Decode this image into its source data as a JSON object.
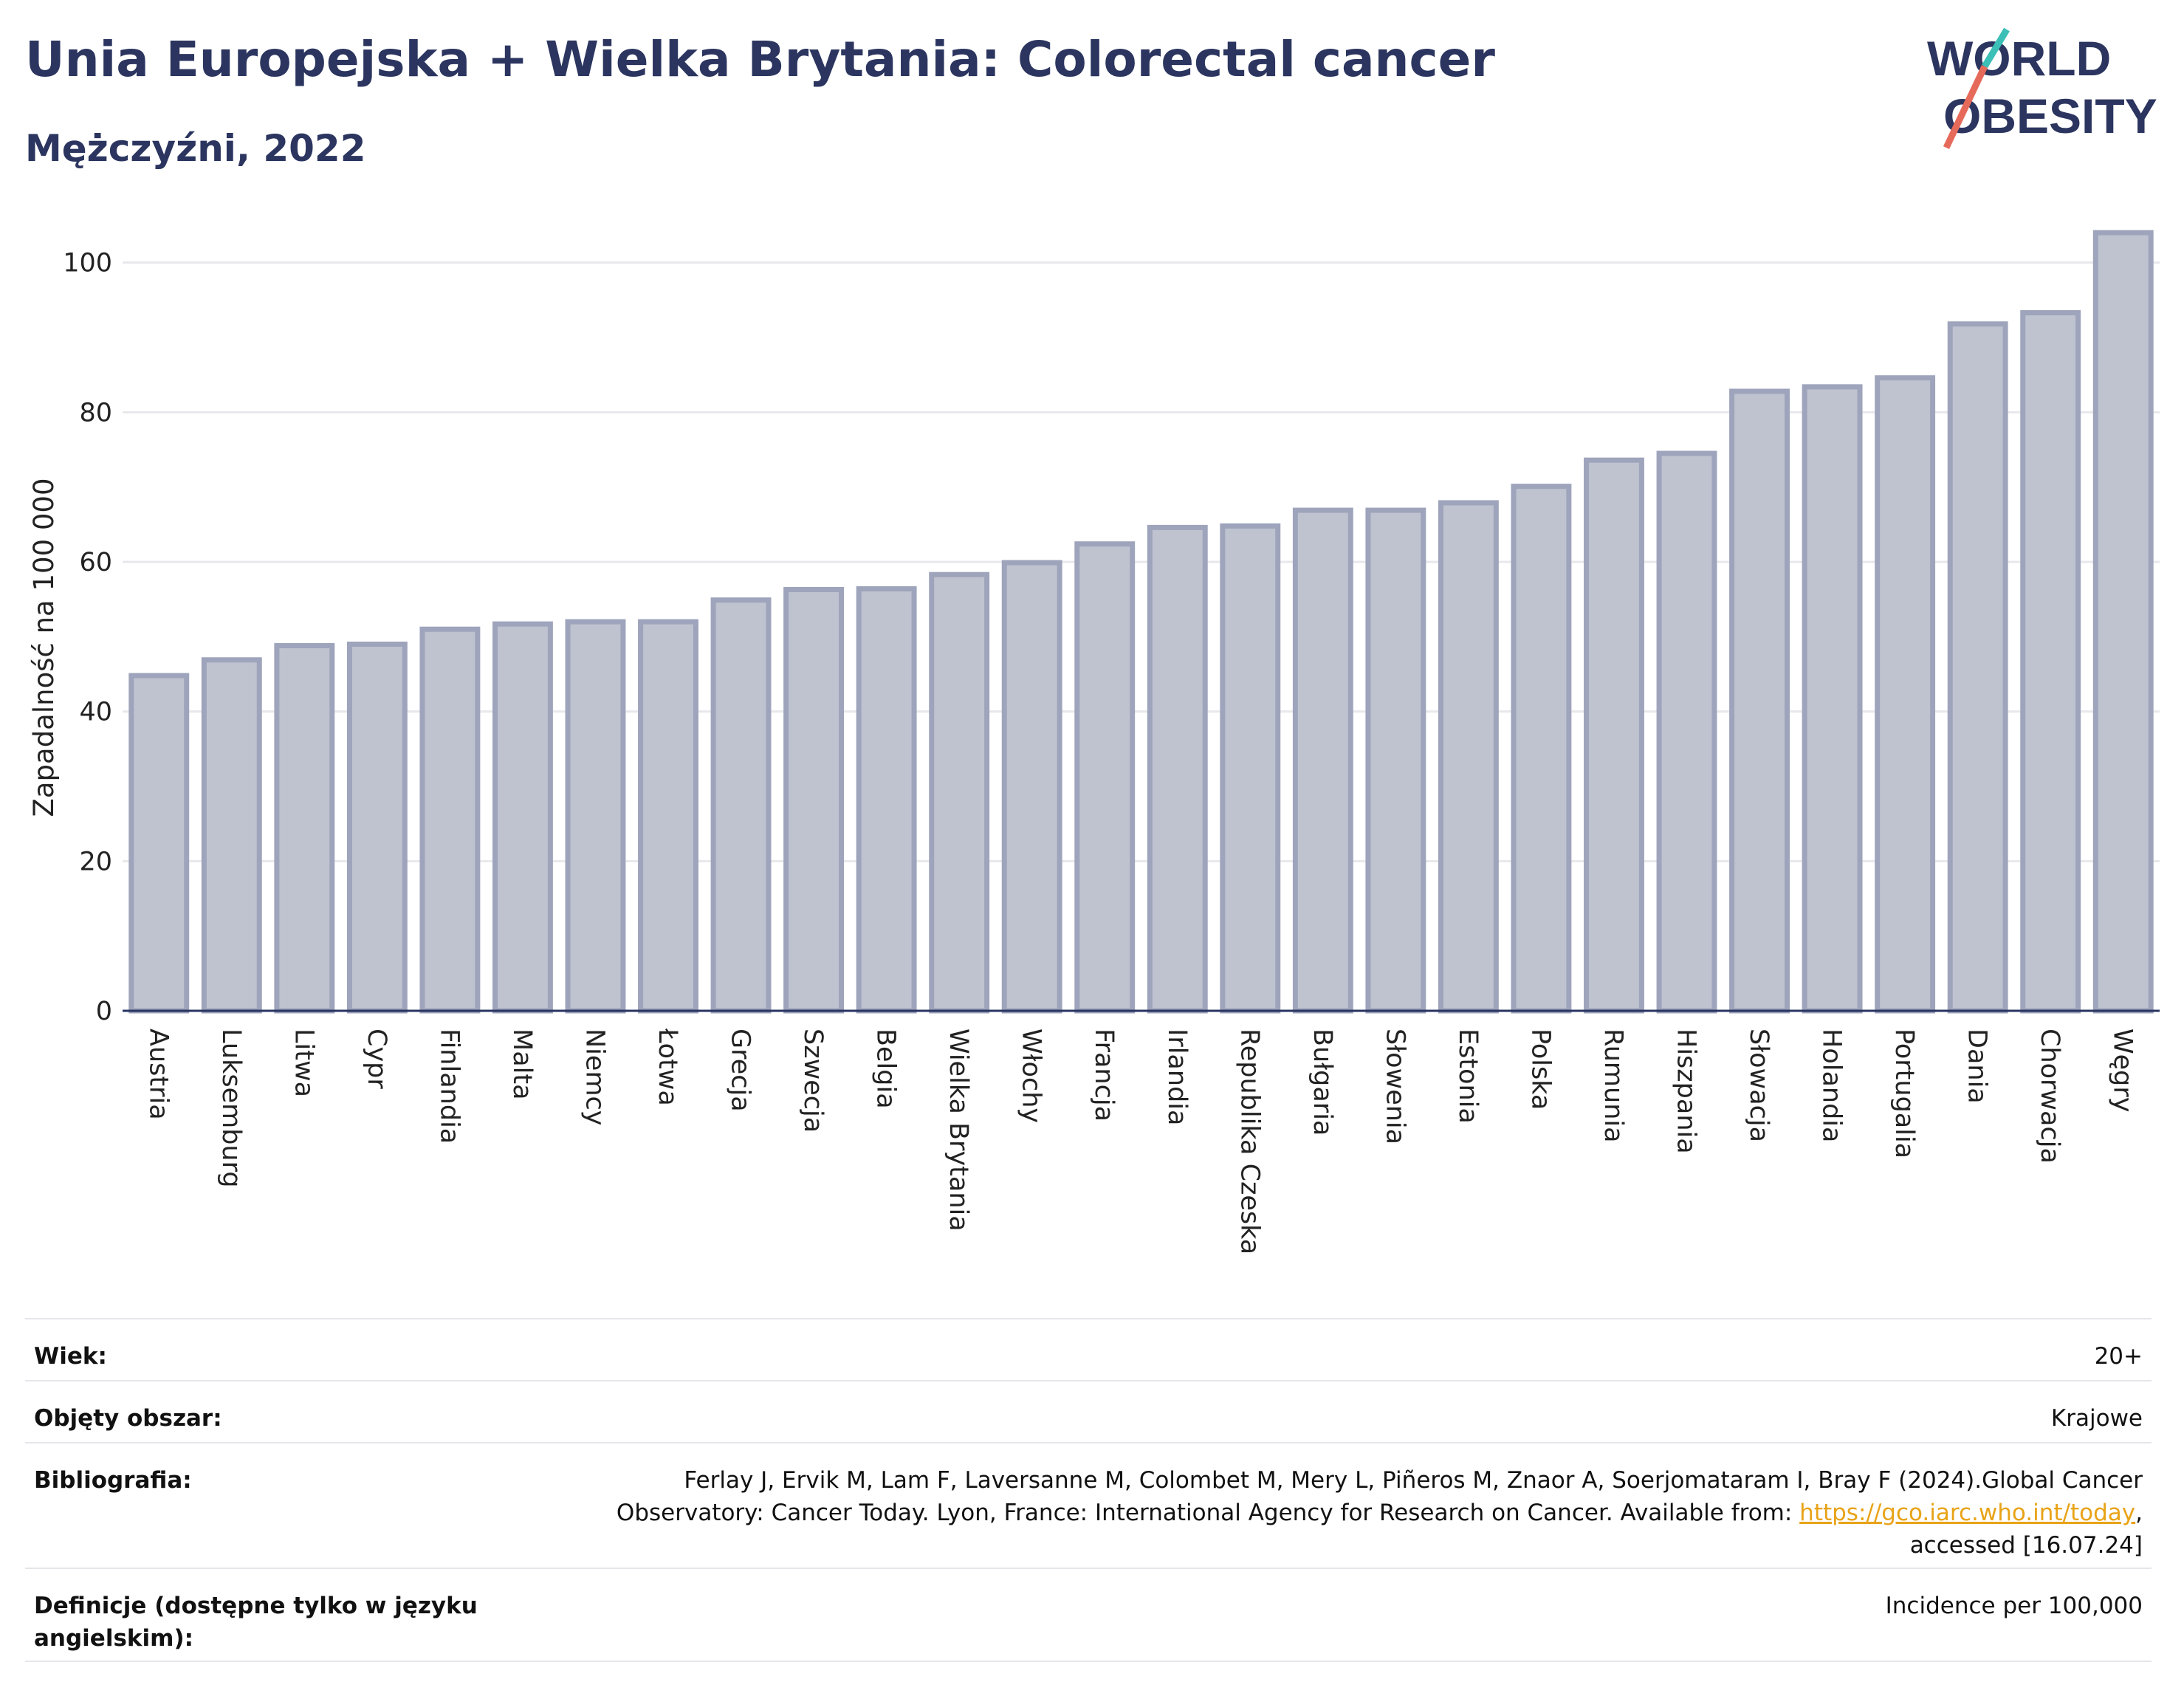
{
  "header": {
    "title": "Unia Europejska + Wielka Brytania: Colorectal cancer",
    "subtitle": "Mężczyźni, 2022"
  },
  "logo": {
    "line1": "WORLD",
    "line2": "OBESITY",
    "accent1": "#3bbfb7",
    "accent2": "#e66a5a",
    "color": "#2b355f"
  },
  "chart_data": {
    "type": "bar",
    "ylabel": "Zapadalność na 100 000",
    "xlabel": "",
    "ylim": [
      0,
      105
    ],
    "yticks": [
      0,
      20,
      40,
      60,
      80,
      100
    ],
    "grid": true,
    "bar_color": "#bfc3d0",
    "bar_edge": "#9ea4bb",
    "categories": [
      "Austria",
      "Luksemburg",
      "Litwa",
      "Cypr",
      "Finlandia",
      "Malta",
      "Niemcy",
      "Łotwa",
      "Grecja",
      "Szwecja",
      "Belgia",
      "Wielka Brytania",
      "Włochy",
      "Francja",
      "Irlandia",
      "Republika Czeska",
      "Bułgaria",
      "Słowenia",
      "Estonia",
      "Polska",
      "Rumunia",
      "Hiszpania",
      "Słowacja",
      "Holandia",
      "Portugalia",
      "Dania",
      "Chorwacja",
      "Węgry"
    ],
    "values": [
      44.8,
      46.9,
      48.8,
      49.0,
      51.0,
      51.7,
      52.0,
      52.0,
      54.9,
      56.3,
      56.4,
      58.3,
      59.9,
      62.4,
      64.6,
      64.8,
      66.9,
      66.9,
      67.9,
      70.1,
      73.6,
      74.5,
      82.8,
      83.4,
      84.6,
      91.8,
      93.3,
      104.0
    ]
  },
  "meta": {
    "age_label": "Wiek:",
    "age_value": "20+",
    "area_label": "Objęty obszar:",
    "area_value": "Krajowe",
    "bib_label": "Bibliografia:",
    "bib_line1": "Ferlay J, Ervik M, Lam F, Laversanne M, Colombet M, Mery L, Piñeros M, Znaor A, Soerjomataram I, Bray F (2024).Global Cancer",
    "bib_line2": "Observatory: Cancer Today. Lyon, France: International Agency for Research on Cancer. Available from: ",
    "bib_link": "https://gco.iarc.who.int/today",
    "bib_line2_end": ",",
    "bib_line3": "accessed [16.07.24]",
    "def_label": "Definicje (dostępne tylko w języku angielskim):",
    "def_value": "Incidence per 100,000"
  }
}
